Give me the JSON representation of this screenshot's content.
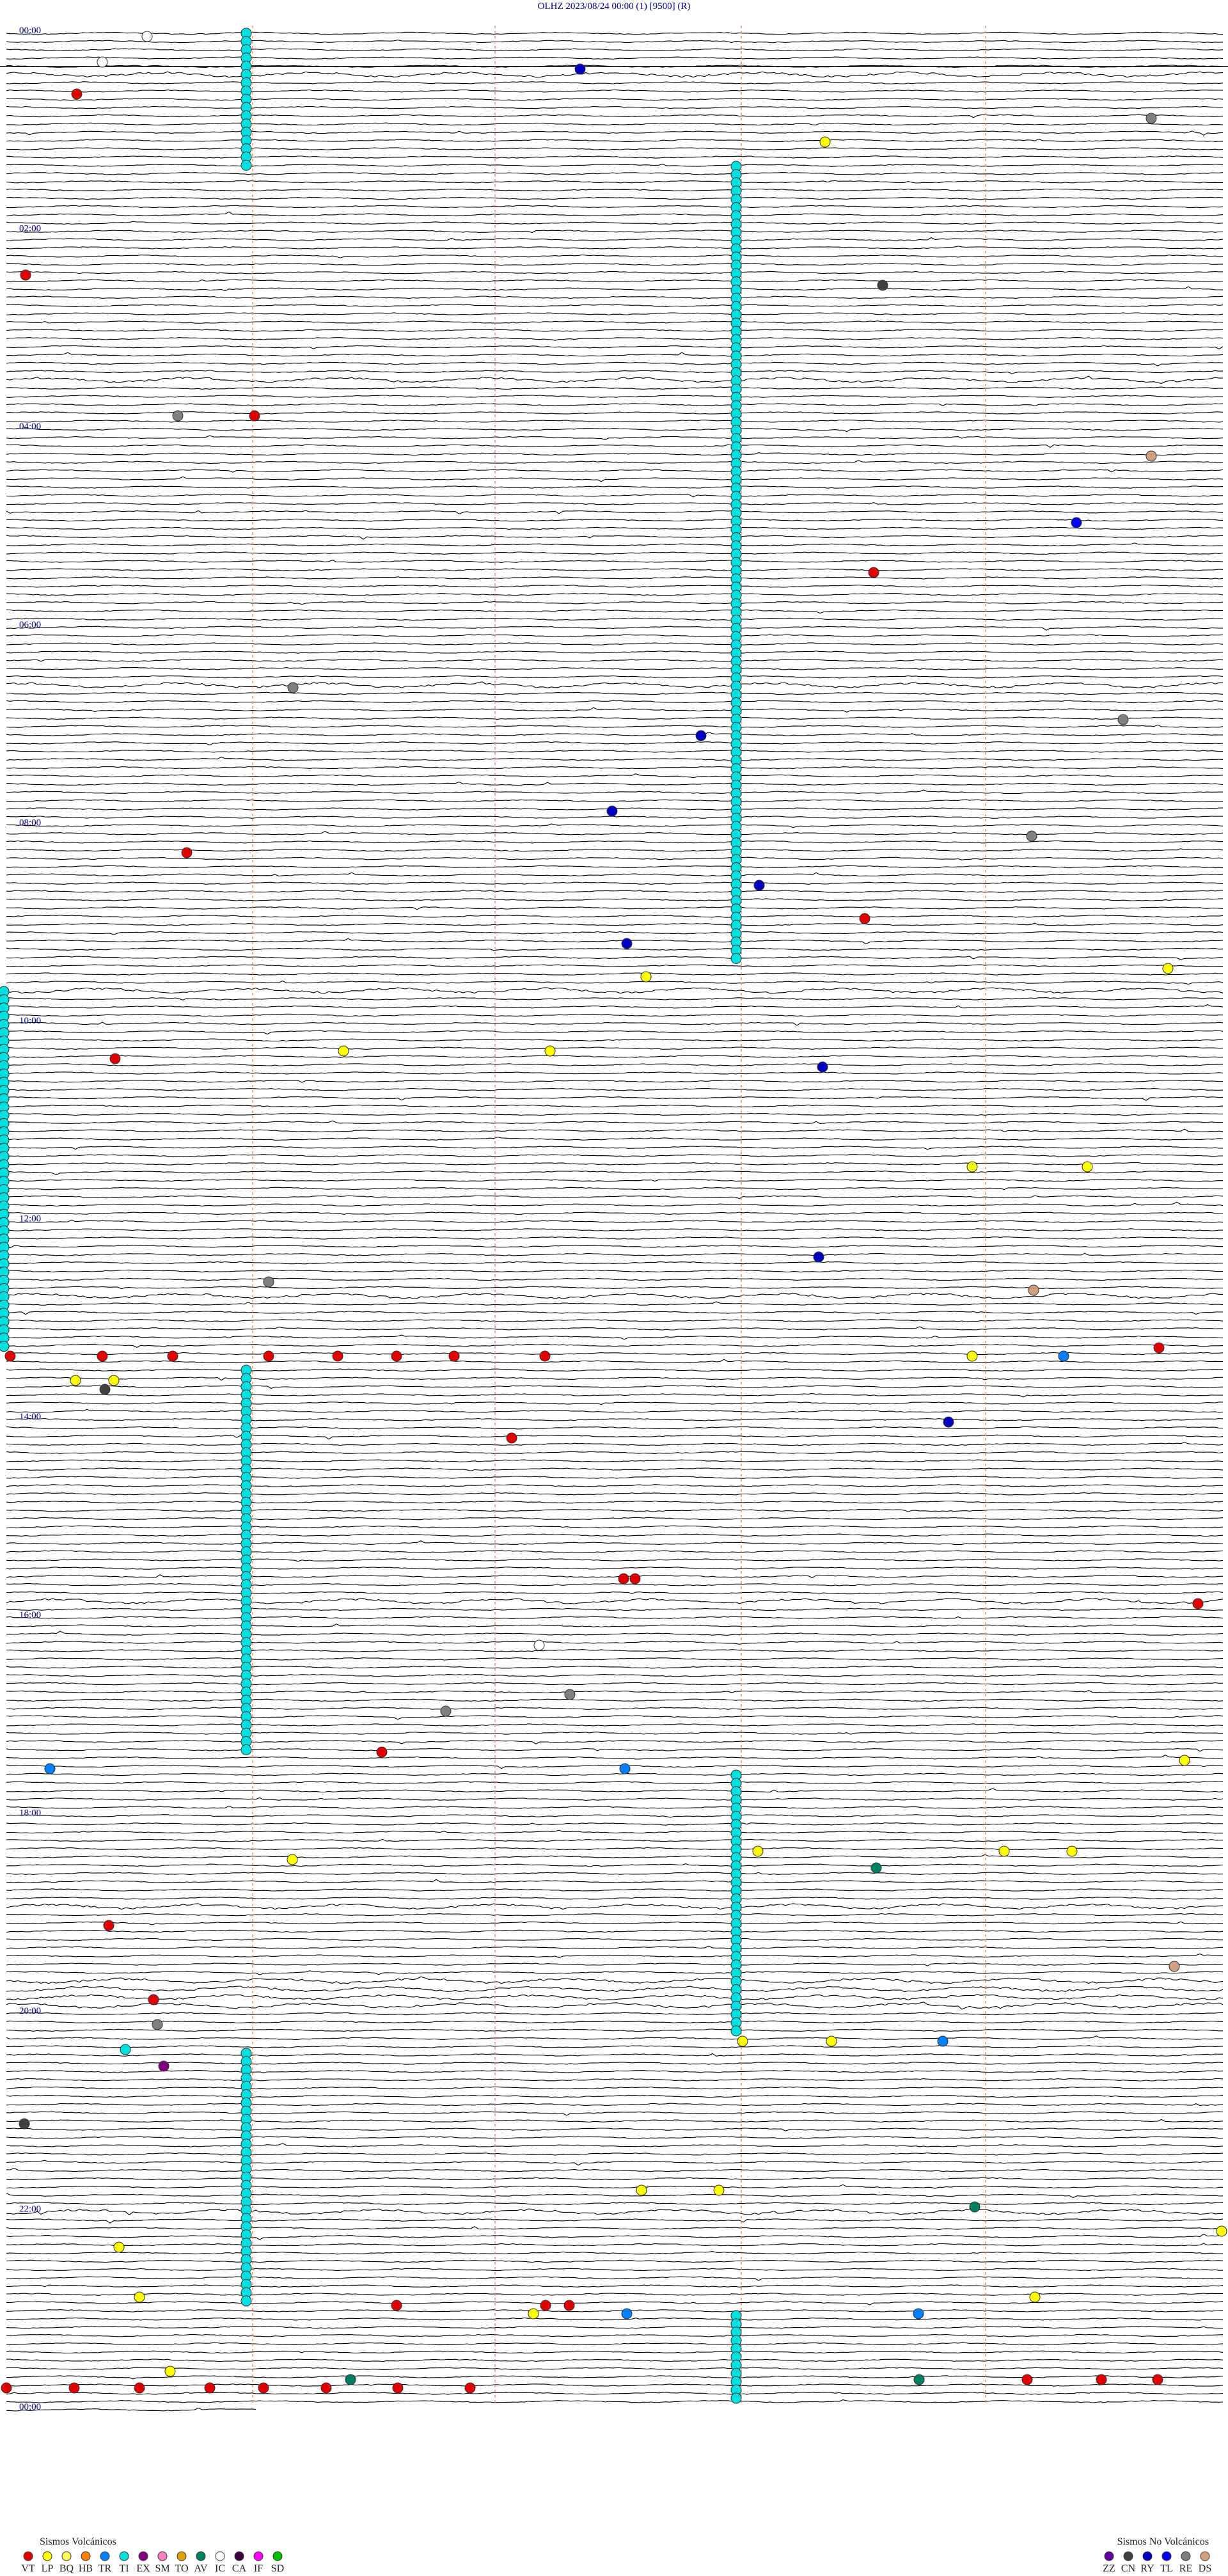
{
  "header": {
    "title": "OLHZ    2023/08/24 00:00     (1)     [9500]    (R)"
  },
  "hour_labels": [
    "00:00",
    "02:00",
    "04:00",
    "06:00",
    "08:00",
    "10:00",
    "12:00",
    "14:00",
    "16:00",
    "18:00",
    "20:00",
    "22:00",
    "00:00"
  ],
  "legend": {
    "volcanic": {
      "title": "Sismos Volcánicos",
      "items": [
        {
          "code": "VT",
          "color": "#e00000"
        },
        {
          "code": "LP",
          "color": "#ffff00"
        },
        {
          "code": "BQ",
          "color": "#ffff60"
        },
        {
          "code": "HB",
          "color": "#ff8000"
        },
        {
          "code": "TR",
          "color": "#0080ff"
        },
        {
          "code": "TI",
          "color": "#00e0e0"
        },
        {
          "code": "EX",
          "color": "#800080"
        },
        {
          "code": "SM",
          "color": "#ff80c0"
        },
        {
          "code": "TO",
          "color": "#e0a000"
        },
        {
          "code": "AV",
          "color": "#008060"
        },
        {
          "code": "IC",
          "color": "#ffffff"
        },
        {
          "code": "CA",
          "color": "#400040"
        },
        {
          "code": "IF",
          "color": "#ff00ff"
        },
        {
          "code": "SD",
          "color": "#00c000"
        }
      ]
    },
    "non_volcanic": {
      "title": "Sismos No Volcánicos",
      "items": [
        {
          "code": "ZZ",
          "color": "#6000a0"
        },
        {
          "code": "CN",
          "color": "#404040"
        },
        {
          "code": "RY",
          "color": "#0000c0"
        },
        {
          "code": "TL",
          "color": "#0000ff"
        },
        {
          "code": "RE",
          "color": "#808080"
        },
        {
          "code": "DS",
          "color": "#d0a080"
        }
      ]
    }
  }
}
